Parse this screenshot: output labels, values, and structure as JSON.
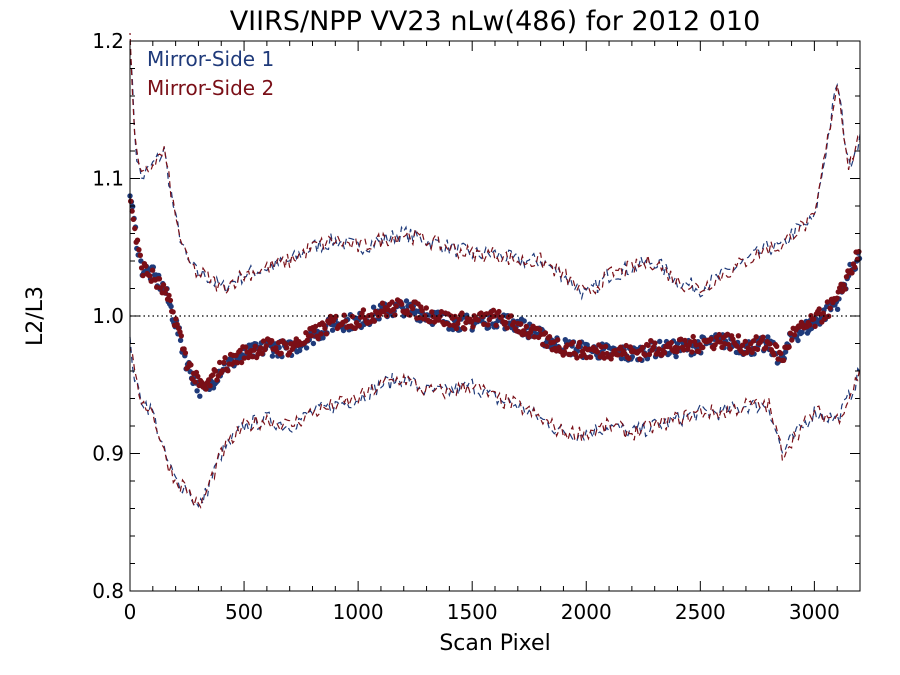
{
  "chart_data": {
    "type": "scatter",
    "title": "VIIRS/NPP VV23 nLw(486) for 2012 010",
    "xlabel": "Scan Pixel",
    "ylabel": "L2/L3",
    "xlim": [
      0,
      3200
    ],
    "ylim": [
      0.8,
      1.2
    ],
    "xticks": [
      0,
      500,
      1000,
      1500,
      2000,
      2500,
      3000
    ],
    "yticks": [
      0.8,
      0.9,
      1.0,
      1.1,
      1.2
    ],
    "xtick_labels": [
      "0",
      "500",
      "1000",
      "1500",
      "2000",
      "2500",
      "3000"
    ],
    "ytick_labels": [
      "0.8",
      "0.9",
      "1.0",
      "1.1",
      "1.2"
    ],
    "reference_line": 1.0,
    "grid": false,
    "legend_position": "top-left",
    "colors": {
      "ms1": "#1f3a7a",
      "ms2": "#7a0f17",
      "reference": "#000000"
    },
    "series": [
      {
        "name": "Mirror-Side 1",
        "color": "#1f3a7a",
        "x": [
          0,
          25,
          50,
          100,
          150,
          200,
          250,
          300,
          330,
          400,
          500,
          600,
          700,
          800,
          900,
          1000,
          1100,
          1200,
          1300,
          1400,
          1500,
          1600,
          1700,
          1800,
          1900,
          2000,
          2100,
          2200,
          2300,
          2400,
          2500,
          2600,
          2700,
          2800,
          2860,
          2900,
          3000,
          3100,
          3150,
          3200
        ],
        "mean": [
          1.09,
          1.06,
          1.035,
          1.03,
          1.02,
          0.995,
          0.965,
          0.948,
          0.945,
          0.962,
          0.972,
          0.977,
          0.976,
          0.985,
          0.995,
          0.996,
          1.003,
          1.006,
          1.001,
          0.996,
          0.995,
          0.998,
          0.994,
          0.985,
          0.978,
          0.975,
          0.974,
          0.972,
          0.976,
          0.976,
          0.979,
          0.982,
          0.977,
          0.979,
          0.967,
          0.985,
          0.995,
          1.01,
          1.03,
          1.045
        ],
        "upper": [
          1.2,
          1.12,
          1.1,
          1.11,
          1.12,
          1.07,
          1.04,
          1.03,
          1.03,
          1.02,
          1.03,
          1.035,
          1.04,
          1.05,
          1.055,
          1.05,
          1.055,
          1.06,
          1.055,
          1.05,
          1.045,
          1.045,
          1.04,
          1.04,
          1.03,
          1.015,
          1.03,
          1.035,
          1.04,
          1.025,
          1.02,
          1.03,
          1.04,
          1.05,
          1.05,
          1.06,
          1.07,
          1.17,
          1.11,
          1.13
        ],
        "lower": [
          0.98,
          0.95,
          0.94,
          0.93,
          0.9,
          0.88,
          0.875,
          0.86,
          0.87,
          0.9,
          0.92,
          0.925,
          0.92,
          0.93,
          0.935,
          0.94,
          0.95,
          0.955,
          0.945,
          0.945,
          0.95,
          0.94,
          0.935,
          0.925,
          0.915,
          0.915,
          0.92,
          0.915,
          0.92,
          0.925,
          0.93,
          0.93,
          0.935,
          0.935,
          0.9,
          0.91,
          0.93,
          0.925,
          0.94,
          0.96
        ]
      },
      {
        "name": "Mirror-Side 2",
        "color": "#7a0f17",
        "x": [
          0,
          25,
          50,
          100,
          150,
          200,
          250,
          300,
          330,
          400,
          500,
          600,
          700,
          800,
          900,
          1000,
          1100,
          1200,
          1300,
          1400,
          1500,
          1600,
          1700,
          1800,
          1900,
          2000,
          2100,
          2200,
          2300,
          2400,
          2500,
          2600,
          2700,
          2800,
          2860,
          2900,
          3000,
          3100,
          3150,
          3200
        ],
        "mean": [
          1.09,
          1.058,
          1.036,
          1.028,
          1.018,
          0.997,
          0.967,
          0.95,
          0.947,
          0.963,
          0.973,
          0.978,
          0.977,
          0.986,
          0.996,
          0.997,
          1.004,
          1.007,
          1.002,
          0.997,
          0.996,
          0.999,
          0.993,
          0.984,
          0.977,
          0.974,
          0.975,
          0.973,
          0.977,
          0.977,
          0.98,
          0.983,
          0.978,
          0.98,
          0.969,
          0.986,
          0.996,
          1.011,
          1.031,
          1.046
        ],
        "upper": [
          1.2,
          1.12,
          1.1,
          1.11,
          1.12,
          1.07,
          1.04,
          1.03,
          1.03,
          1.02,
          1.03,
          1.035,
          1.04,
          1.05,
          1.055,
          1.05,
          1.055,
          1.06,
          1.055,
          1.05,
          1.045,
          1.045,
          1.04,
          1.04,
          1.03,
          1.015,
          1.03,
          1.035,
          1.04,
          1.025,
          1.02,
          1.03,
          1.04,
          1.05,
          1.05,
          1.06,
          1.07,
          1.17,
          1.11,
          1.13
        ],
        "lower": [
          0.98,
          0.95,
          0.94,
          0.93,
          0.9,
          0.88,
          0.875,
          0.86,
          0.87,
          0.9,
          0.92,
          0.925,
          0.92,
          0.93,
          0.935,
          0.94,
          0.95,
          0.955,
          0.945,
          0.945,
          0.95,
          0.94,
          0.935,
          0.925,
          0.915,
          0.915,
          0.92,
          0.915,
          0.92,
          0.925,
          0.93,
          0.93,
          0.935,
          0.935,
          0.9,
          0.91,
          0.93,
          0.925,
          0.94,
          0.96
        ]
      }
    ]
  }
}
